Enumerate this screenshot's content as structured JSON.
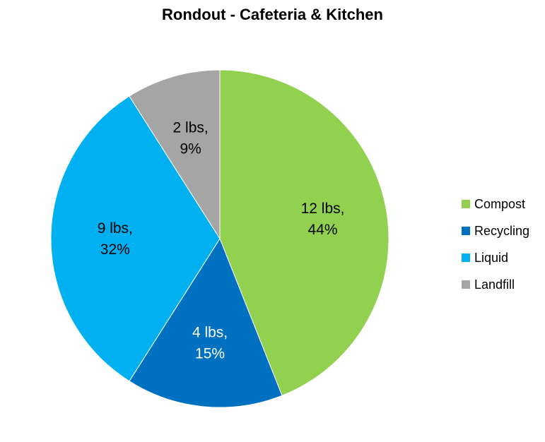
{
  "chart_data": {
    "type": "pie",
    "title": "Rondout - Cafeteria & Kitchen",
    "categories": [
      "Compost",
      "Recycling",
      "Liquid",
      "Landfill"
    ],
    "values": [
      12,
      4,
      9,
      2
    ],
    "percents": [
      44,
      15,
      32,
      9
    ],
    "data_labels": [
      [
        "12 lbs,",
        "44%"
      ],
      [
        "4 lbs,",
        "15%"
      ],
      [
        "9 lbs,",
        "32%"
      ],
      [
        "2 lbs,",
        "9%"
      ]
    ],
    "colors": [
      "#92d050",
      "#0070c0",
      "#00b0f0",
      "#a5a5a5"
    ],
    "label_colors": [
      "#000000",
      "#ffffff",
      "#000000",
      "#000000"
    ],
    "legend_position": "right",
    "start_angle": "12 o'clock",
    "direction": "clockwise"
  }
}
